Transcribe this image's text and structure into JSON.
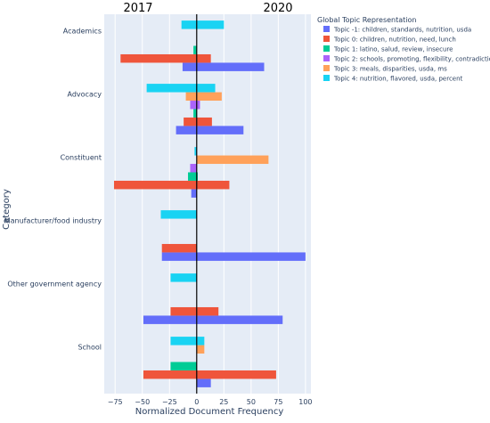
{
  "chart_data": {
    "type": "bar",
    "orientation": "horizontal",
    "barmode": "group",
    "xlabel": "Normalized Document Frequency",
    "ylabel": "Category",
    "xlim": [
      -85,
      105
    ],
    "xticks": [
      -75,
      -50,
      -25,
      0,
      25,
      50,
      75,
      100
    ],
    "xtick_labels": [
      "−75",
      "−50",
      "−25",
      "0",
      "25",
      "50",
      "75",
      "100"
    ],
    "year_labels": {
      "left": "2017",
      "right": "2020"
    },
    "grid": true,
    "legend_position": "top-right",
    "legend_title": "Global Topic Representation",
    "categories": [
      "Academics",
      "Advocacy",
      "Constituent",
      "Manufacturer/food industry",
      "Other government agency",
      "School"
    ],
    "series": [
      {
        "name": "Topic -1: children, standards, nutrition, usda",
        "color": "#636efa",
        "segments": [
          [
            [
              -13,
              62
            ]
          ],
          [
            [
              -19,
              43
            ]
          ],
          [
            [
              -5,
              0
            ]
          ],
          [
            [
              -32,
              100
            ]
          ],
          [
            [
              -49,
              79
            ]
          ],
          [
            [
              0,
              13
            ]
          ]
        ]
      },
      {
        "name": "Topic 0: children, nutrition, need, lunch",
        "color": "#ef553b",
        "segments": [
          [
            [
              -70,
              13
            ]
          ],
          [
            [
              -12,
              14
            ]
          ],
          [
            [
              -76,
              30
            ]
          ],
          [
            [
              -32,
              0
            ]
          ],
          [
            [
              -24,
              20
            ]
          ],
          [
            [
              -49,
              73
            ]
          ]
        ]
      },
      {
        "name": "Topic 1: latino, salud, review, insecure",
        "color": "#00cc96",
        "segments": [
          [
            [
              -3,
              0
            ]
          ],
          [
            [
              -3,
              0
            ]
          ],
          [
            [
              -8,
              1
            ]
          ],
          [],
          [],
          [
            [
              -24,
              0
            ]
          ]
        ]
      },
      {
        "name": "Topic 2: schools, promoting, flexibility, contradiction",
        "color": "#ab63fa",
        "segments": [
          [],
          [
            [
              -6,
              3
            ]
          ],
          [
            [
              -6,
              0
            ]
          ],
          [],
          [],
          []
        ]
      },
      {
        "name": "Topic 3: meals, disparities, usda, ms",
        "color": "#ffa15a",
        "segments": [
          [],
          [
            [
              -10,
              23
            ]
          ],
          [
            [
              0,
              66
            ]
          ],
          [],
          [],
          [
            [
              0,
              7
            ]
          ]
        ]
      },
      {
        "name": "Topic 4: nutrition, flavored, usda, percent",
        "color": "#19d3f3",
        "segments": [
          [
            [
              -14,
              25
            ]
          ],
          [
            [
              -46,
              17
            ]
          ],
          [
            [
              -2,
              0
            ]
          ],
          [
            [
              -33,
              0
            ]
          ],
          [
            [
              -24,
              0
            ]
          ],
          [
            [
              -24,
              7
            ]
          ]
        ]
      }
    ]
  }
}
